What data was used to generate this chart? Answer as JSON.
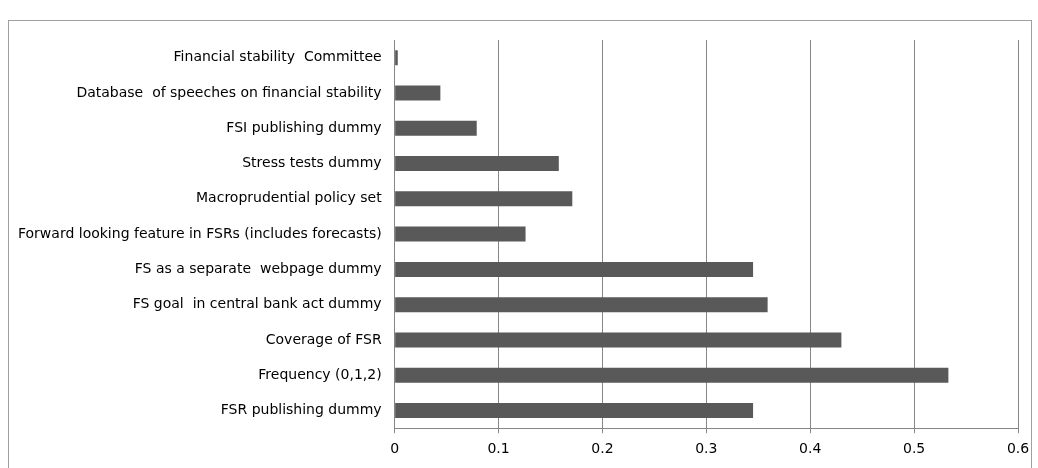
{
  "chart_data": {
    "type": "bar",
    "orientation": "horizontal",
    "categories": [
      "Financial stability  Committee",
      "Database  of speeches on financial stability",
      "FSI publishing dummy",
      "Stress tests dummy",
      "Macroprudential policy set",
      "Forward looking feature in FSRs (includes forecasts)",
      "FS as a separate  webpage dummy",
      "FS goal  in central bank act dummy",
      "Coverage of FSR",
      "Frequency (0,1,2)",
      "FSR publishing dummy"
    ],
    "values": [
      0.003,
      0.044,
      0.079,
      0.158,
      0.171,
      0.126,
      0.345,
      0.359,
      0.43,
      0.533,
      0.345
    ],
    "color": "#595959",
    "xlim": [
      0,
      0.6
    ],
    "xticks": [
      0,
      0.1,
      0.2,
      0.3,
      0.4,
      0.5,
      0.6
    ],
    "grid": "x",
    "legend": false
  }
}
